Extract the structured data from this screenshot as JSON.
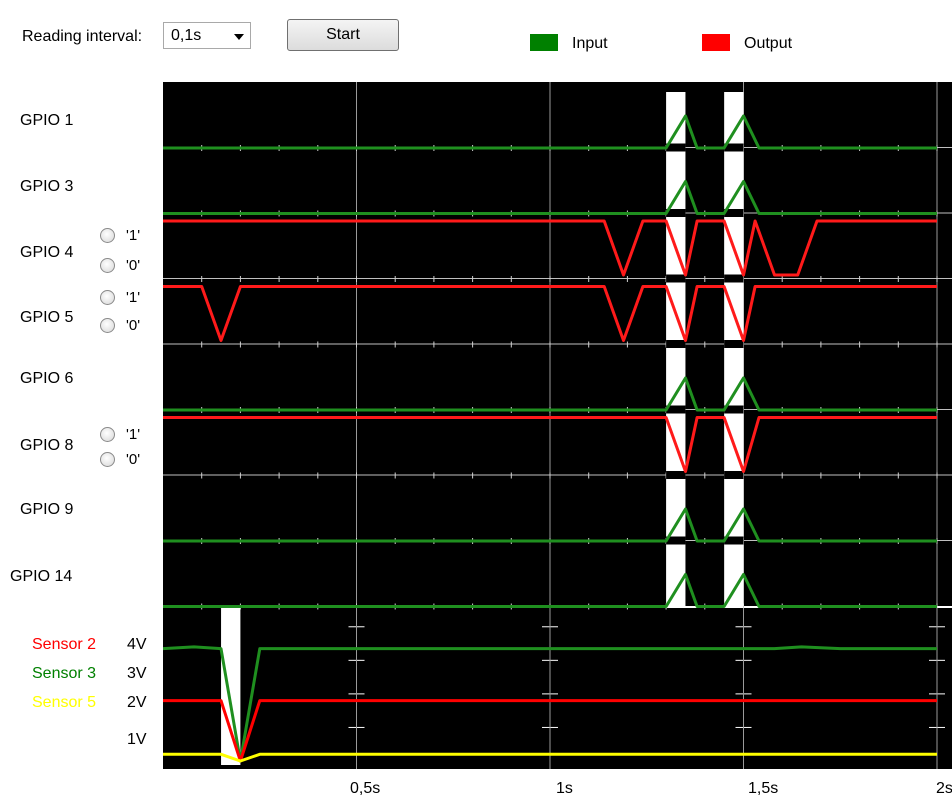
{
  "toolbar": {
    "reading_interval_label": "Reading interval:",
    "reading_interval_value": "0,1s",
    "start_label": "Start"
  },
  "legend": [
    {
      "name": "Input",
      "color": "#008000"
    },
    {
      "name": "Output",
      "color": "#ff0000"
    }
  ],
  "gpio_rows": [
    {
      "label": "GPIO 1",
      "has_radios": false
    },
    {
      "label": "GPIO 3",
      "has_radios": false
    },
    {
      "label": "GPIO 4",
      "has_radios": true
    },
    {
      "label": "GPIO 5",
      "has_radios": true
    },
    {
      "label": "GPIO 6",
      "has_radios": false
    },
    {
      "label": "GPIO 8",
      "has_radios": true
    },
    {
      "label": "GPIO 9",
      "has_radios": false
    },
    {
      "label": "GPIO 14",
      "has_radios": false
    }
  ],
  "radio_labels": {
    "one": "'1'",
    "zero": "'0'"
  },
  "sensors": [
    {
      "label": "Sensor 2",
      "color": "#ff0000"
    },
    {
      "label": "Sensor 3",
      "color": "#008000"
    },
    {
      "label": "Sensor 5",
      "color": "#ffff00"
    }
  ],
  "chart_data": {
    "type": "line",
    "x_unit": "s",
    "xlim": [
      0,
      2
    ],
    "x_ticks": [
      0.5,
      1,
      1.5,
      2
    ],
    "x_tick_labels": [
      "0,5s",
      "1s",
      "1,5s",
      "2s"
    ],
    "y_tick_labels": [
      "4V",
      "3V",
      "2V",
      "1V"
    ],
    "y_ticks": [
      4,
      3,
      2,
      1
    ],
    "analog_ylim": [
      0,
      4.5
    ],
    "gaps": [
      [
        1.3,
        1.35
      ],
      [
        1.45,
        1.5
      ],
      [
        0.15,
        0.2
      ]
    ],
    "digital_traces": [
      {
        "row": "GPIO 1",
        "kind": "input",
        "points": [
          [
            0,
            0
          ],
          [
            1.3,
            0
          ],
          [
            1.35,
            1
          ],
          [
            1.38,
            0
          ],
          [
            1.45,
            0
          ],
          [
            1.5,
            1
          ],
          [
            1.54,
            0
          ],
          [
            2,
            0
          ]
        ]
      },
      {
        "row": "GPIO 3",
        "kind": "input",
        "points": [
          [
            0,
            0
          ],
          [
            1.3,
            0
          ],
          [
            1.35,
            1
          ],
          [
            1.38,
            0
          ],
          [
            1.45,
            0
          ],
          [
            1.5,
            1
          ],
          [
            1.54,
            0
          ],
          [
            2,
            0
          ]
        ]
      },
      {
        "row": "GPIO 4",
        "kind": "output",
        "points": [
          [
            0,
            1
          ],
          [
            1.14,
            1
          ],
          [
            1.19,
            0
          ],
          [
            1.24,
            1
          ],
          [
            1.3,
            1
          ],
          [
            1.35,
            0
          ],
          [
            1.38,
            1
          ],
          [
            1.45,
            1
          ],
          [
            1.5,
            0
          ],
          [
            1.53,
            1
          ],
          [
            1.58,
            0
          ],
          [
            1.64,
            0
          ],
          [
            1.69,
            1
          ],
          [
            2,
            1
          ]
        ]
      },
      {
        "row": "GPIO 5",
        "kind": "output",
        "points": [
          [
            0,
            1
          ],
          [
            0.1,
            1
          ],
          [
            0.15,
            0
          ],
          [
            0.2,
            1
          ],
          [
            1.14,
            1
          ],
          [
            1.19,
            0
          ],
          [
            1.24,
            1
          ],
          [
            1.3,
            1
          ],
          [
            1.35,
            0
          ],
          [
            1.38,
            1
          ],
          [
            1.45,
            1
          ],
          [
            1.5,
            0
          ],
          [
            1.53,
            1
          ],
          [
            2,
            1
          ]
        ]
      },
      {
        "row": "GPIO 6",
        "kind": "input",
        "points": [
          [
            0,
            0
          ],
          [
            1.3,
            0
          ],
          [
            1.35,
            1
          ],
          [
            1.38,
            0
          ],
          [
            1.45,
            0
          ],
          [
            1.5,
            1
          ],
          [
            1.54,
            0
          ],
          [
            2,
            0
          ]
        ]
      },
      {
        "row": "GPIO 8",
        "kind": "output",
        "points": [
          [
            0,
            1
          ],
          [
            1.3,
            1
          ],
          [
            1.35,
            0
          ],
          [
            1.38,
            1
          ],
          [
            1.45,
            1
          ],
          [
            1.5,
            0
          ],
          [
            1.54,
            1
          ],
          [
            2,
            1
          ]
        ]
      },
      {
        "row": "GPIO 9",
        "kind": "input",
        "points": [
          [
            0,
            0
          ],
          [
            1.3,
            0
          ],
          [
            1.35,
            1
          ],
          [
            1.38,
            0
          ],
          [
            1.45,
            0
          ],
          [
            1.5,
            1
          ],
          [
            1.54,
            0
          ],
          [
            2,
            0
          ]
        ]
      },
      {
        "row": "GPIO 14",
        "kind": "input",
        "points": [
          [
            0,
            0
          ],
          [
            1.3,
            0
          ],
          [
            1.35,
            1
          ],
          [
            1.38,
            0
          ],
          [
            1.45,
            0
          ],
          [
            1.5,
            1
          ],
          [
            1.54,
            0
          ],
          [
            2,
            0
          ]
        ]
      }
    ],
    "analog_series": [
      {
        "name": "Sensor 3",
        "color": "#008000",
        "points": [
          [
            0,
            3.35
          ],
          [
            0.08,
            3.4
          ],
          [
            0.15,
            3.35
          ],
          [
            0.2,
            0
          ],
          [
            0.25,
            3.35
          ],
          [
            1.58,
            3.35
          ],
          [
            1.65,
            3.4
          ],
          [
            1.75,
            3.35
          ],
          [
            2,
            3.35
          ]
        ]
      },
      {
        "name": "Sensor 2",
        "color": "#ff0000",
        "points": [
          [
            0,
            1.8
          ],
          [
            0.15,
            1.8
          ],
          [
            0.2,
            0
          ],
          [
            0.25,
            1.8
          ],
          [
            2,
            1.8
          ]
        ]
      },
      {
        "name": "Sensor 5",
        "color": "#ffff00",
        "points": [
          [
            0,
            0.2
          ],
          [
            0.15,
            0.2
          ],
          [
            0.2,
            0
          ],
          [
            0.25,
            0.2
          ],
          [
            2,
            0.2
          ]
        ]
      }
    ]
  }
}
